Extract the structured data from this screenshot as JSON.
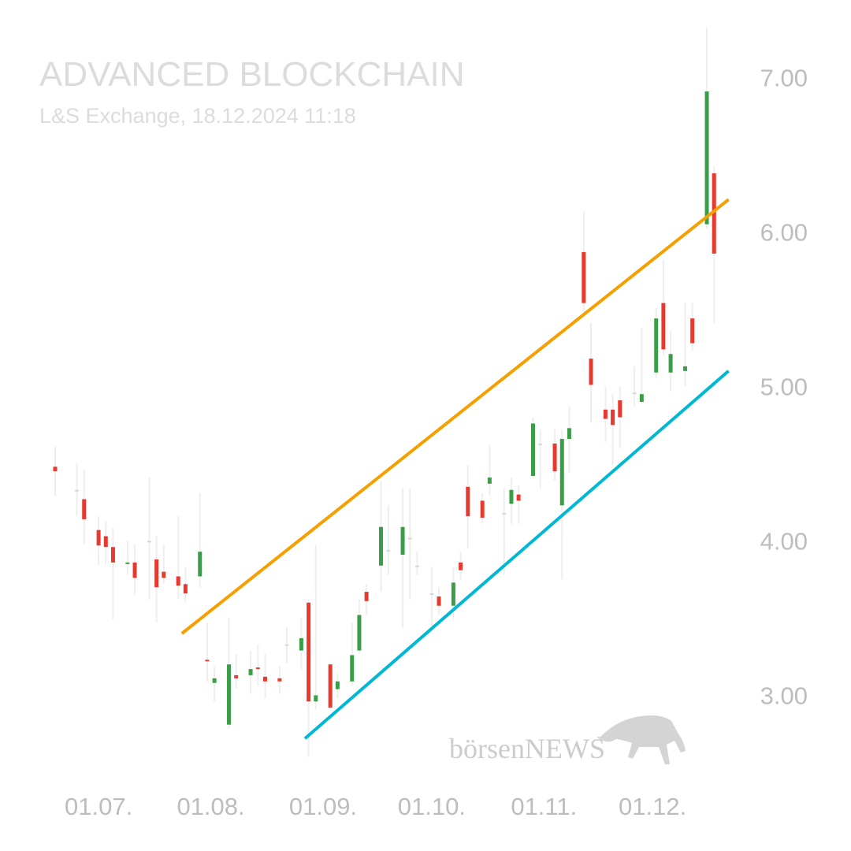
{
  "chart_data": {
    "type": "candlestick",
    "title": "ADVANCED BLOCKCHAIN",
    "subtitle": "L&S Exchange, 18.12.2024 11:18",
    "watermark": "börsenNEWS",
    "x": [
      "19.06.",
      "25.06.",
      "27.06.",
      "01.07.",
      "03.07.",
      "05.07.",
      "09.07.",
      "11.07.",
      "15.07.",
      "17.07.",
      "19.07.",
      "23.07.",
      "25.07.",
      "29.07.",
      "31.07.",
      "02.08.",
      "06.08.",
      "08.08.",
      "12.08.",
      "14.08.",
      "16.08.",
      "20.08.",
      "22.08.",
      "26.08.",
      "28.08.",
      "30.08.",
      "03.09.",
      "05.09.",
      "09.09.",
      "11.09.",
      "13.09.",
      "17.09.",
      "19.09.",
      "23.09.",
      "25.09.",
      "27.09.",
      "01.10.",
      "03.10.",
      "07.10.",
      "09.10.",
      "11.10.",
      "15.10.",
      "17.10.",
      "21.10.",
      "23.10.",
      "25.10.",
      "29.10.",
      "31.10.",
      "04.11.",
      "06.11.",
      "08.11.",
      "12.11.",
      "14.11.",
      "18.11.",
      "20.11.",
      "22.11.",
      "26.11.",
      "28.11.",
      "02.12.",
      "04.12.",
      "06.12.",
      "10.12.",
      "12.12.",
      "16.12.",
      "18.12."
    ],
    "open": [
      4.48,
      4.33,
      4.27,
      4.07,
      4.03,
      3.96,
      3.85,
      3.86,
      4.0,
      3.88,
      3.8,
      3.77,
      3.72,
      3.77,
      3.23,
      3.08,
      2.81,
      3.13,
      3.13,
      3.18,
      3.12,
      3.11,
      3.33,
      3.29,
      3.6,
      2.96,
      3.2,
      3.04,
      3.09,
      3.29,
      3.67,
      3.84,
      3.94,
      3.91,
      4.02,
      3.84,
      3.66,
      3.64,
      3.58,
      3.86,
      4.35,
      4.26,
      4.37,
      4.18,
      4.24,
      4.3,
      4.42,
      4.63,
      4.63,
      4.23,
      4.66,
      5.87,
      5.18,
      4.85,
      4.85,
      4.91,
      4.96,
      4.9,
      5.09,
      5.54,
      5.09,
      5.1,
      5.44,
      6.05,
      6.38
    ],
    "high": [
      4.61,
      4.5,
      4.46,
      4.16,
      4.13,
      4.08,
      4.0,
      3.98,
      4.41,
      4.03,
      3.98,
      4.16,
      3.83,
      4.31,
      3.47,
      3.19,
      3.5,
      3.27,
      3.29,
      3.33,
      3.27,
      3.19,
      3.44,
      3.5,
      3.62,
      3.97,
      3.21,
      3.14,
      3.47,
      3.62,
      3.72,
      4.39,
      4.23,
      4.34,
      4.34,
      3.93,
      3.83,
      3.7,
      3.83,
      3.93,
      4.49,
      4.31,
      4.62,
      4.34,
      4.41,
      4.36,
      4.8,
      4.72,
      4.72,
      4.72,
      4.87,
      6.13,
      5.41,
      5.0,
      4.95,
      5.0,
      5.13,
      5.38,
      5.51,
      5.82,
      5.36,
      5.54,
      5.54,
      7.32,
      6.43
    ],
    "low": [
      4.29,
      4.16,
      3.98,
      3.84,
      3.85,
      3.49,
      3.78,
      3.65,
      3.62,
      3.47,
      3.72,
      3.62,
      3.6,
      3.7,
      3.09,
      2.96,
      2.78,
      3.04,
      3.01,
      3.06,
      2.98,
      3.01,
      3.21,
      3.16,
      2.6,
      2.91,
      2.91,
      2.98,
      3.06,
      3.27,
      3.52,
      3.67,
      3.78,
      3.44,
      3.62,
      3.78,
      3.44,
      3.52,
      3.49,
      3.75,
      3.95,
      4.11,
      4.29,
      3.78,
      4.11,
      4.11,
      4.41,
      4.34,
      4.39,
      3.75,
      4.44,
      5.46,
      4.77,
      4.64,
      4.49,
      4.6,
      4.87,
      4.89,
      5.05,
      5.2,
      4.97,
      5.0,
      5.23,
      6.02,
      5.41
    ],
    "close": [
      4.45,
      4.33,
      4.14,
      3.97,
      3.96,
      3.86,
      3.86,
      3.76,
      4.0,
      3.7,
      3.76,
      3.71,
      3.66,
      3.93,
      3.22,
      3.11,
      3.2,
      3.11,
      3.17,
      3.17,
      3.09,
      3.09,
      3.33,
      3.37,
      2.96,
      3.0,
      2.92,
      3.09,
      3.26,
      3.52,
      3.61,
      4.09,
      3.94,
      4.09,
      4.02,
      3.84,
      3.66,
      3.58,
      3.73,
      3.81,
      4.16,
      4.15,
      4.41,
      4.18,
      4.33,
      4.26,
      4.76,
      4.63,
      4.45,
      4.66,
      4.73,
      5.54,
      5.01,
      4.79,
      4.75,
      4.8,
      4.96,
      4.95,
      5.44,
      5.24,
      5.21,
      5.13,
      5.28,
      6.91,
      5.86
    ],
    "up_color": "#3a9e48",
    "down_color": "#e8392f",
    "flat_color": "#d8d8d8",
    "wick_color": "#eeeeee",
    "trendlines": [
      {
        "color": "#f5a000",
        "x": [
          "24.07.",
          "22.12."
        ],
        "values": [
          3.4,
          6.21
        ]
      },
      {
        "color": "#00b8d4",
        "x": [
          "27.08.",
          "22.12."
        ],
        "values": [
          2.72,
          5.1
        ]
      }
    ],
    "xlim": [
      "14.06.",
      "26.12."
    ],
    "xticks": [
      "01.07.",
      "01.08.",
      "01.09.",
      "01.10.",
      "01.11.",
      "01.12."
    ],
    "ylim": [
      2.4,
      7.4
    ],
    "yticks": [
      {
        "value": 3,
        "label": "3.00"
      },
      {
        "value": 4,
        "label": "4.00"
      },
      {
        "value": 5,
        "label": "5.00"
      },
      {
        "value": 6,
        "label": "6.00"
      },
      {
        "value": 7,
        "label": "7.00"
      }
    ],
    "grid": false
  }
}
